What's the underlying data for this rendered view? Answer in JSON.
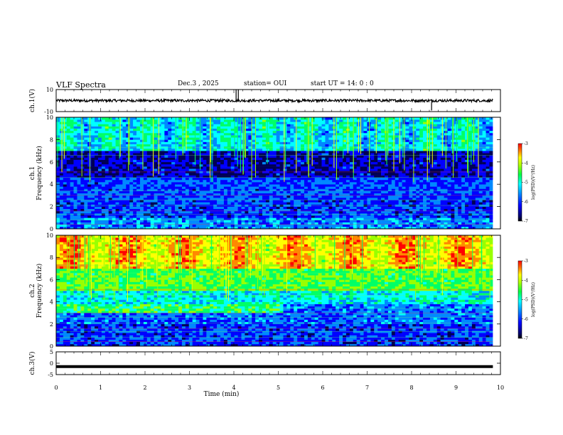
{
  "header": {
    "title": "VLF Spectra",
    "date": "Dec.3  , 2025",
    "station": "station= OUI",
    "start": "start  UT  =   14: 0  : 0"
  },
  "chart_data": [
    {
      "type": "line",
      "name": "ch1-waveform",
      "ylabel": "ch.1(V)",
      "ylim": [
        -10,
        10
      ],
      "yticks": [
        "10",
        "-10"
      ],
      "xlim": [
        0,
        10
      ],
      "series": [
        {
          "name": "ch.1",
          "baseline": 0,
          "spikes_min": [
            4.05,
            4.1,
            8.45
          ]
        }
      ]
    },
    {
      "type": "heatmap",
      "name": "ch1-spectrogram",
      "ylabel": "ch.1\nFrequency  (kHz)",
      "ylim": [
        0,
        10
      ],
      "yticks": [
        "0",
        "2",
        "4",
        "6",
        "8",
        "10"
      ],
      "xlim": [
        0,
        10
      ],
      "data_end_min": 9.83,
      "colorbar": {
        "label": "log(PSD)(V²/Hz)",
        "range": [
          -7,
          -3
        ],
        "ticks": [
          "-3",
          "-4",
          "-5",
          "-6",
          "-7"
        ]
      }
    },
    {
      "type": "heatmap",
      "name": "ch2-spectrogram",
      "ylabel": "ch.2\nFrequency  (kHz)",
      "ylim": [
        0,
        10
      ],
      "yticks": [
        "0",
        "2",
        "4",
        "6",
        "8",
        "10"
      ],
      "xlim": [
        0,
        10
      ],
      "data_end_min": 9.83,
      "colorbar": {
        "label": "log(PSD)(V²/Hz)",
        "range": [
          -7,
          -3
        ],
        "ticks": [
          "-3",
          "-4",
          "-5",
          "-6",
          "-7"
        ]
      }
    },
    {
      "type": "line",
      "name": "ch3-waveform",
      "ylabel": "ch.3(V)",
      "ylim": [
        -5,
        5
      ],
      "yticks": [
        "5",
        "0",
        "-5"
      ],
      "xlim": [
        0,
        10
      ],
      "xlabel": "Time  (min)",
      "xticks": [
        "0",
        "1",
        "2",
        "3",
        "4",
        "5",
        "6",
        "7",
        "8",
        "9",
        "10"
      ],
      "series": [
        {
          "name": "ch.3",
          "value": -1.5
        }
      ]
    }
  ],
  "colors": {
    "colormap": [
      "#000055",
      "#0000ff",
      "#0088ff",
      "#00ffff",
      "#00ff66",
      "#99ff00",
      "#ffff00",
      "#ff8800",
      "#ff0000"
    ]
  }
}
